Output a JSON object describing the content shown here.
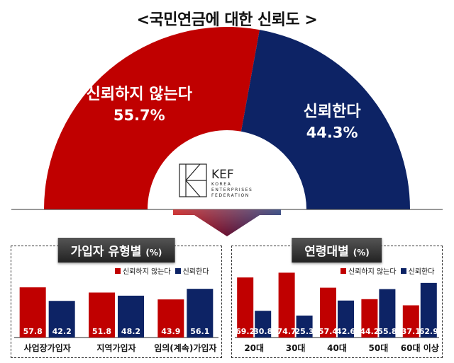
{
  "title": "<국민연금에 대한 신뢰도 >",
  "colors": {
    "red": "#c00000",
    "navy": "#0d2365",
    "dark": "#2a2a2a"
  },
  "logo": {
    "mark": "KEF",
    "line1": "KOREA",
    "line2": "ENTERPRISES",
    "line3": "FEDERATION"
  },
  "chart_data": [
    {
      "type": "pie",
      "title": "<국민연금에 대한 신뢰도 >",
      "categories": [
        "신뢰하지 않는다",
        "신뢰한다"
      ],
      "values": [
        55.7,
        44.3
      ],
      "labels": [
        "신뢰하지 않는다",
        "신뢰한다"
      ],
      "value_labels": [
        "55.7%",
        "44.3%"
      ]
    },
    {
      "type": "bar",
      "title": "가입자 유형별",
      "unit": "(%)",
      "categories": [
        "사업장가입자",
        "지역가입자",
        "임의(계속)가입자"
      ],
      "series": [
        {
          "name": "신뢰하지 않는다",
          "values": [
            57.8,
            51.8,
            43.9
          ]
        },
        {
          "name": "신뢰한다",
          "values": [
            42.2,
            48.2,
            56.1
          ]
        }
      ],
      "ylim": [
        0,
        100
      ],
      "legend": "top-right"
    },
    {
      "type": "bar",
      "title": "연령대별",
      "unit": "(%)",
      "categories": [
        "20대",
        "30대",
        "40대",
        "50대",
        "60대 이상"
      ],
      "series": [
        {
          "name": "신뢰하지 않는다",
          "values": [
            69.2,
            74.7,
            57.4,
            44.2,
            37.1
          ]
        },
        {
          "name": "신뢰한다",
          "values": [
            30.8,
            25.3,
            42.6,
            55.8,
            62.9
          ]
        }
      ],
      "ylim": [
        0,
        100
      ],
      "legend": "top-right"
    }
  ]
}
